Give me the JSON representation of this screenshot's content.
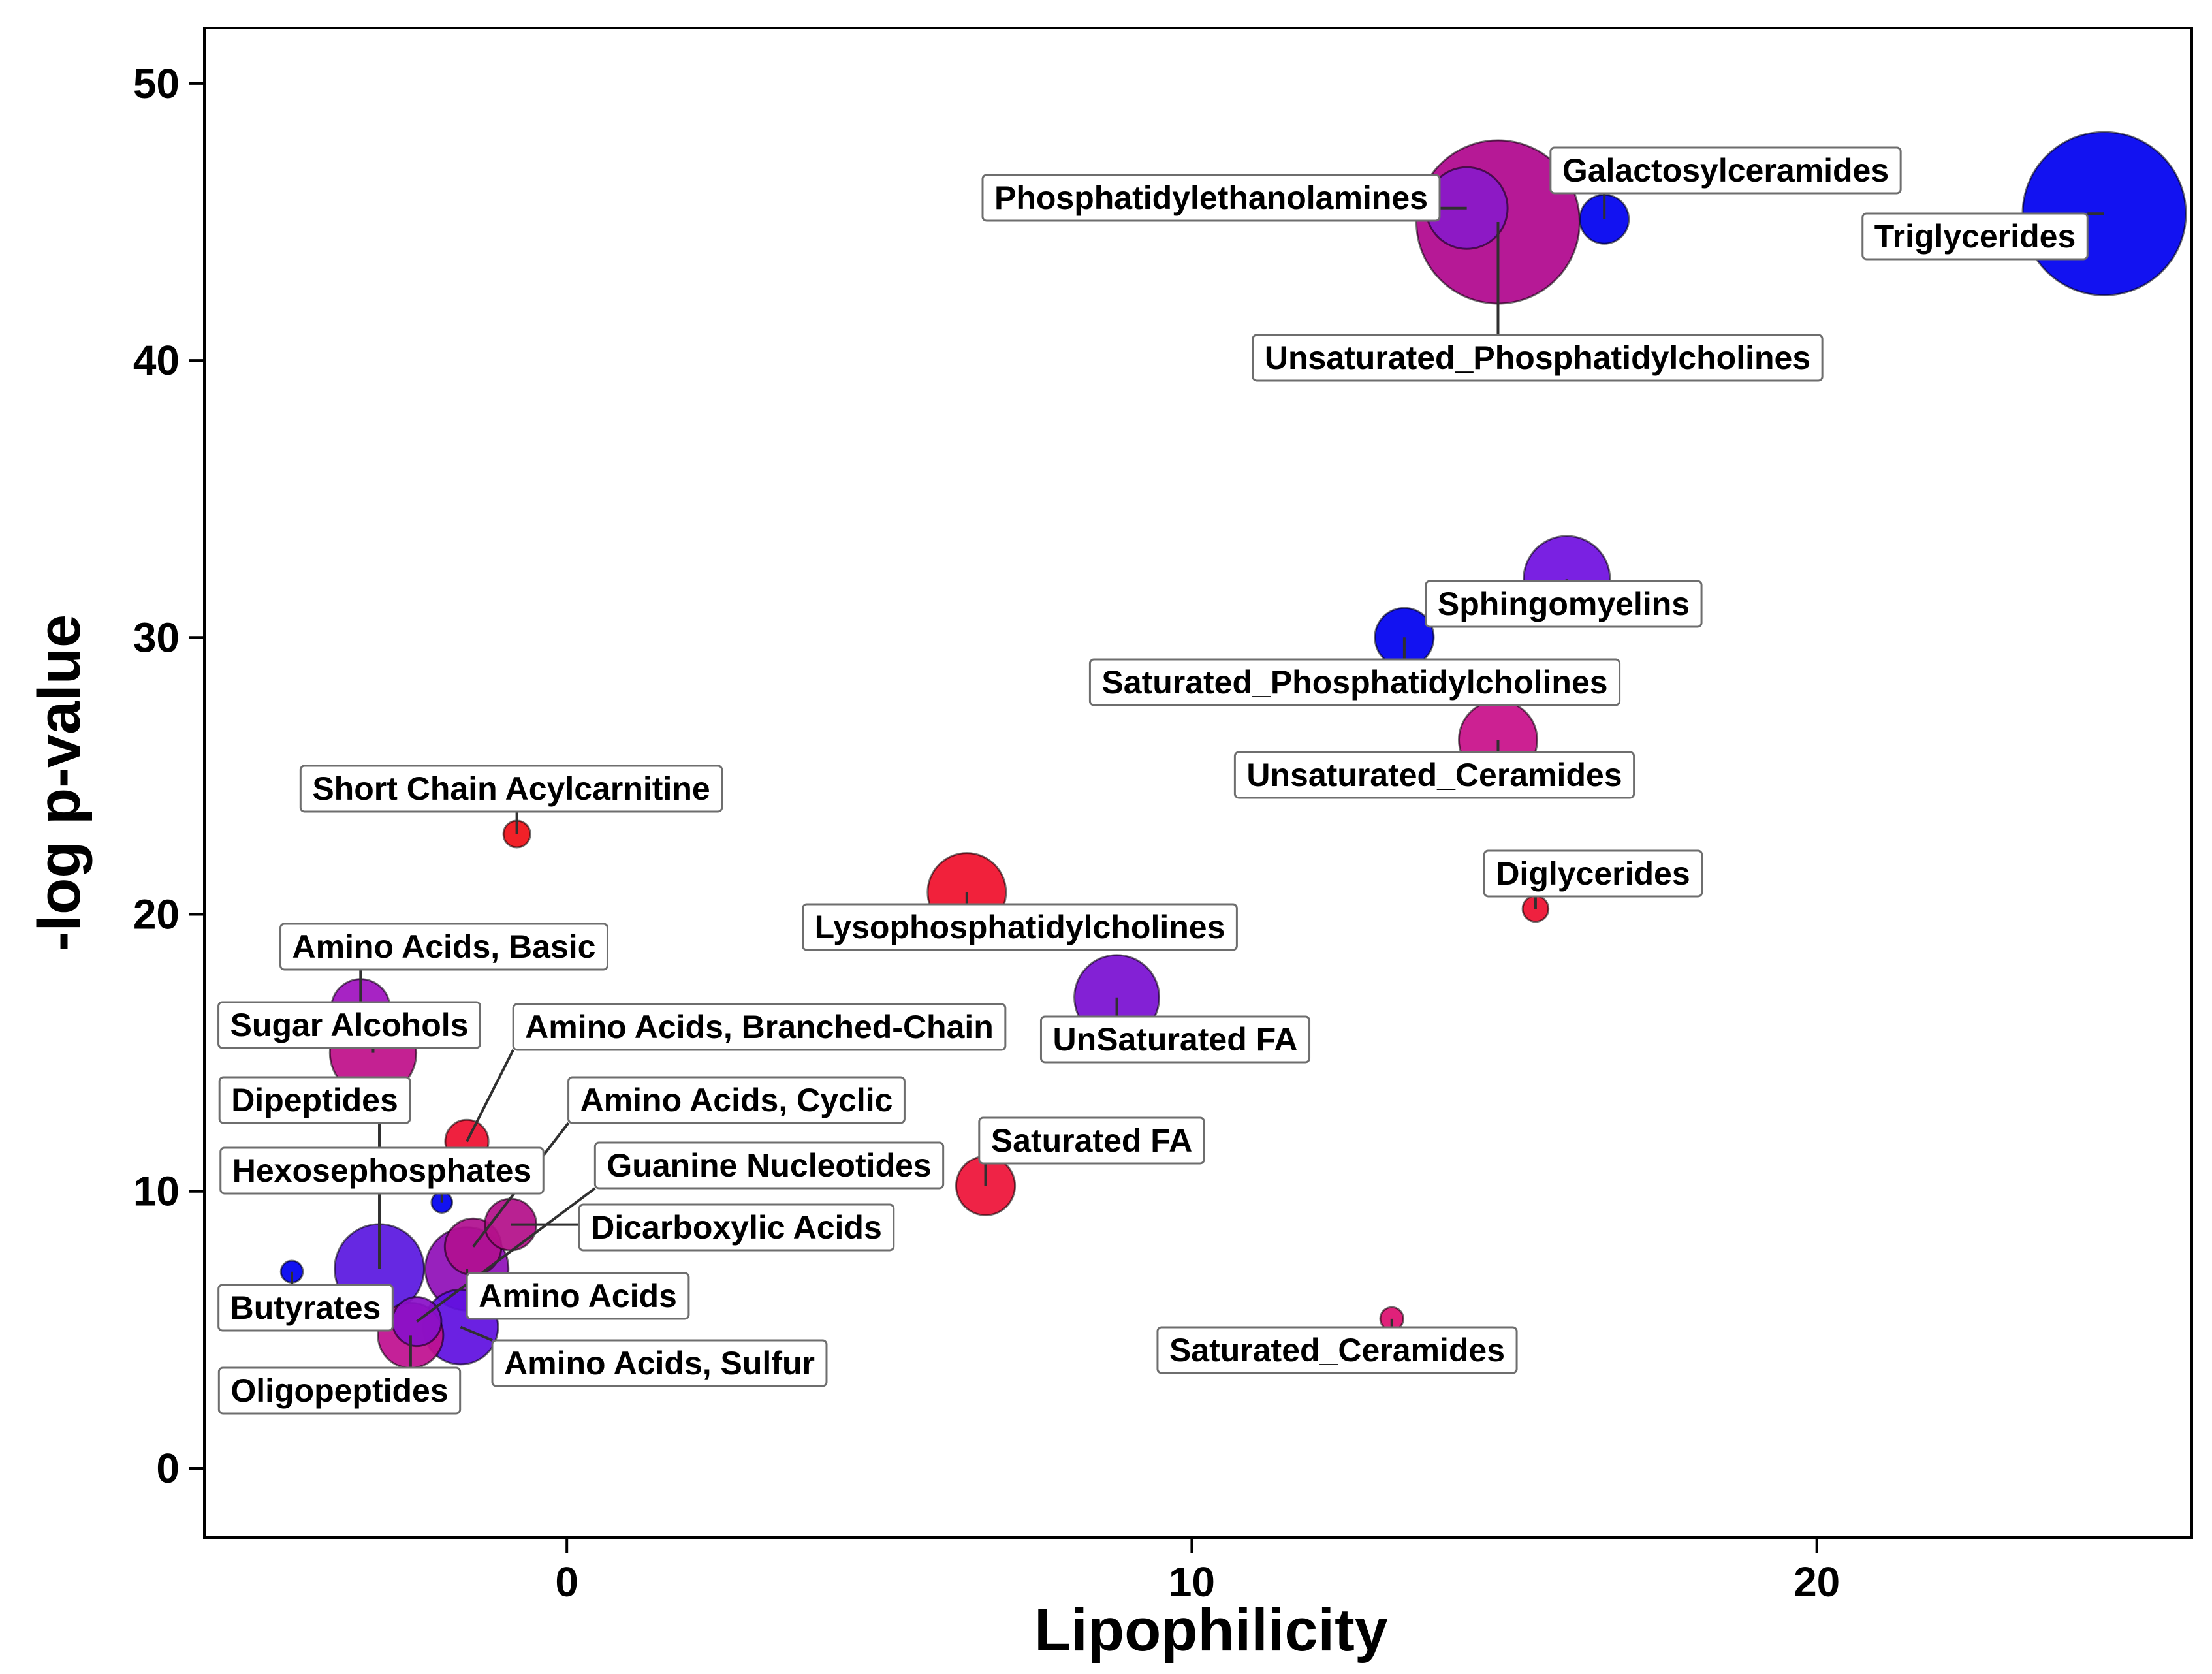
{
  "chart_data": {
    "type": "scatter",
    "title": "",
    "xlabel": "Lipophilicity",
    "ylabel": "-log p-value",
    "xlim": [
      -5.8,
      26
    ],
    "ylim": [
      -2.5,
      52
    ],
    "xticks": [
      0,
      10,
      20
    ],
    "yticks": [
      0,
      10,
      20,
      30,
      40,
      50
    ],
    "grid": false,
    "points": [
      {
        "name": "Unsaturated_Phosphatidylcholines",
        "x": 14.9,
        "y": 45.0,
        "size": 100,
        "color": "#b0088e",
        "label": "Unsaturated_Phosphatidylcholines"
      },
      {
        "name": "Triglycerides",
        "x": 24.6,
        "y": 45.3,
        "size": 100,
        "color": "#0000f0",
        "label": "Triglycerides"
      },
      {
        "name": "Phosphatidylethanolamines",
        "x": 14.4,
        "y": 45.5,
        "size": 25,
        "color": "#8a1ac8",
        "label": "Phosphatidylethanolamines"
      },
      {
        "name": "Galactosylceramides",
        "x": 16.6,
        "y": 45.1,
        "size": 9,
        "color": "#0000f0",
        "label": "Galactosylceramides"
      },
      {
        "name": "Sphingomyelins",
        "x": 16.0,
        "y": 32.1,
        "size": 28,
        "color": "#7010e0",
        "label": "Sphingomyelins"
      },
      {
        "name": "Saturated_Phosphatidylcholines",
        "x": 13.4,
        "y": 30.0,
        "size": 13,
        "color": "#0000f0",
        "label": "Saturated_Phosphatidylcholines"
      },
      {
        "name": "Unsaturated_Ceramides",
        "x": 14.9,
        "y": 26.3,
        "size": 23,
        "color": "#c8108a",
        "label": "Unsaturated_Ceramides"
      },
      {
        "name": "Diglycerides",
        "x": 15.5,
        "y": 20.2,
        "size": 2.5,
        "color": "#ee1030",
        "label": "Diglycerides"
      },
      {
        "name": "Short Chain Acylcarnitine",
        "x": -0.8,
        "y": 22.9,
        "size": 2.7,
        "color": "#f01018",
        "label": "Short Chain Acylcarnitine"
      },
      {
        "name": "Lysophosphatidylcholines",
        "x": 6.4,
        "y": 20.8,
        "size": 23,
        "color": "#f0102c",
        "label": "Lysophosphatidylcholines"
      },
      {
        "name": "UnSaturated FA",
        "x": 8.8,
        "y": 17.0,
        "size": 27,
        "color": "#7a10d2",
        "label": "UnSaturated FA"
      },
      {
        "name": "Saturated FA",
        "x": 6.7,
        "y": 10.2,
        "size": 13,
        "color": "#ee1238",
        "label": "Saturated FA"
      },
      {
        "name": "Saturated_Ceramides",
        "x": 13.2,
        "y": 5.4,
        "size": 2,
        "color": "#de1070",
        "label": "Saturated_Ceramides"
      },
      {
        "name": "Amino Acids, Basic",
        "x": -3.3,
        "y": 16.6,
        "size": 13,
        "color": "#a012c0",
        "label": "Amino Acids, Basic"
      },
      {
        "name": "Sugar Alcohols",
        "x": -3.1,
        "y": 15.0,
        "size": 28,
        "color": "#c0108a",
        "label": "Sugar Alcohols"
      },
      {
        "name": "Amino Acids, Branched-Chain",
        "x": -1.6,
        "y": 11.8,
        "size": 7,
        "color": "#ee1030",
        "label": "Amino Acids, Branched-Chain"
      },
      {
        "name": "Hexosephosphates",
        "x": -2.0,
        "y": 9.6,
        "size": 1.6,
        "color": "#0000f0",
        "label": "Hexosephosphates"
      },
      {
        "name": "Dicarboxylic Acids",
        "x": -0.9,
        "y": 8.8,
        "size": 10,
        "color": "#b4108a",
        "label": "Dicarboxylic Acids"
      },
      {
        "name": "Amino Acids, Cyclic",
        "x": -1.5,
        "y": 8.0,
        "size": 12,
        "color": "#b01090",
        "label": "Amino Acids, Cyclic"
      },
      {
        "name": "Amino Acids",
        "x": -1.6,
        "y": 7.2,
        "size": 26,
        "color": "#9010b8",
        "label": "Amino Acids"
      },
      {
        "name": "Dipeptides",
        "x": -3.0,
        "y": 7.2,
        "size": 30,
        "color": "#5a18e0",
        "label": "Dipeptides"
      },
      {
        "name": "Butyrates",
        "x": -4.4,
        "y": 7.1,
        "size": 1.8,
        "color": "#0000f0",
        "label": "Butyrates"
      },
      {
        "name": "Guanine Nucleotides",
        "x": -2.4,
        "y": 5.3,
        "size": 9,
        "color": "#8a10c8",
        "label": "Guanine Nucleotides"
      },
      {
        "name": "Oligopeptides",
        "x": -2.5,
        "y": 4.8,
        "size": 16,
        "color": "#c01090",
        "label": "Oligopeptides"
      },
      {
        "name": "Amino Acids, Sulfur",
        "x": -1.7,
        "y": 5.1,
        "size": 21,
        "color": "#6010e0",
        "label": "Amino Acids, Sulfur"
      }
    ]
  }
}
